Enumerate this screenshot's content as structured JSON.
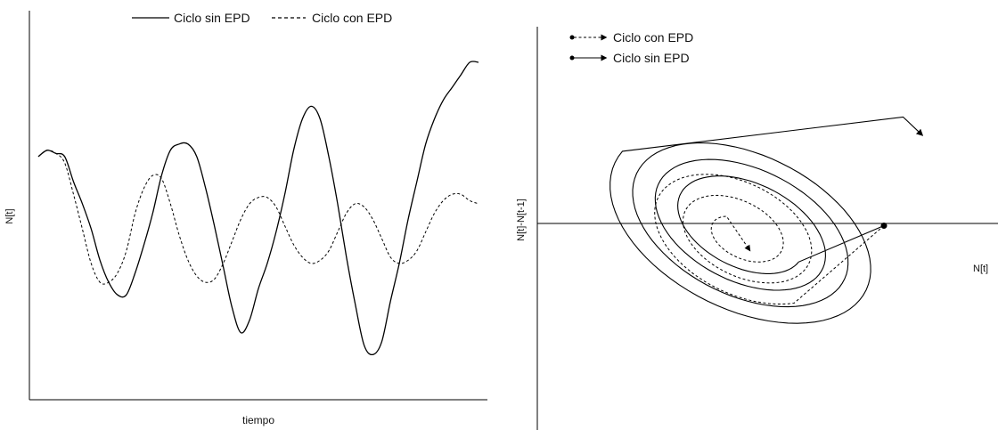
{
  "colors": {
    "line": "#000000",
    "background": "#ffffff"
  },
  "chart_data": [
    {
      "type": "line",
      "title": "",
      "xlabel": "tiempo",
      "ylabel": "N[t]",
      "grid": false,
      "legend_position": "top",
      "legend": [
        {
          "label": "Ciclo sin EPD",
          "style": "solid"
        },
        {
          "label": "Ciclo con EPD",
          "style": "dashed"
        }
      ],
      "xlim": [
        0,
        100
      ],
      "ylim": [
        0,
        100
      ],
      "series": [
        {
          "name": "Ciclo sin EPD",
          "style": "solid",
          "x": [
            0,
            2,
            4,
            6,
            8,
            10,
            12,
            14,
            16,
            18,
            20,
            22,
            24,
            26,
            28,
            30,
            32,
            34,
            36,
            38,
            40,
            42,
            44,
            46,
            48,
            50,
            52,
            54,
            56,
            58,
            60,
            62,
            64,
            66,
            68,
            70,
            72,
            74,
            76,
            78,
            80,
            82,
            84,
            86,
            88,
            90,
            92,
            94,
            96,
            98,
            100
          ],
          "y": [
            70,
            72,
            71,
            70,
            62,
            55,
            47,
            37,
            30,
            26,
            26,
            33,
            42,
            52,
            64,
            72,
            74,
            74,
            70,
            60,
            48,
            35,
            22,
            14,
            18,
            28,
            36,
            46,
            58,
            72,
            82,
            86,
            82,
            70,
            55,
            38,
            23,
            10,
            7,
            11,
            24,
            36,
            50,
            62,
            74,
            82,
            88,
            92,
            96,
            100,
            100
          ]
        },
        {
          "name": "Ciclo con EPD",
          "style": "dashed",
          "x": [
            0,
            2,
            4,
            6,
            8,
            10,
            12,
            14,
            16,
            18,
            20,
            22,
            24,
            26,
            28,
            30,
            32,
            34,
            36,
            38,
            40,
            42,
            44,
            46,
            48,
            50,
            52,
            54,
            56,
            58,
            60,
            62,
            64,
            66,
            68,
            70,
            72,
            74,
            76,
            78,
            80,
            82,
            84,
            86,
            88,
            90,
            92,
            94,
            96,
            98,
            100
          ],
          "y": [
            70,
            72,
            71,
            68,
            58,
            47,
            36,
            30,
            30,
            33,
            40,
            52,
            60,
            64,
            63,
            55,
            45,
            37,
            32,
            30,
            31,
            36,
            43,
            50,
            55,
            57,
            57,
            54,
            48,
            42,
            38,
            36,
            37,
            40,
            46,
            52,
            55,
            54,
            50,
            44,
            38,
            36,
            37,
            40,
            46,
            52,
            56,
            58,
            58,
            56,
            55
          ]
        }
      ]
    },
    {
      "type": "line",
      "subtype": "phase-plot",
      "title": "",
      "xlabel": "N[t]",
      "ylabel": "N[t]-N[t-1]",
      "grid": false,
      "legend_position": "top-left",
      "legend": [
        {
          "label": "Ciclo con EPD",
          "style": "dashed",
          "marker": "dot-arrow"
        },
        {
          "label": "Ciclo sin EPD",
          "style": "solid",
          "marker": "dot-arrow"
        }
      ],
      "xlim": [
        -1,
        1
      ],
      "ylim": [
        -1,
        1
      ],
      "series": [
        {
          "name": "Ciclo sin EPD",
          "style": "solid",
          "shape": "outward-spiral",
          "start": [
            0.8,
            0.1
          ],
          "end": [
            1.0,
            0.65
          ],
          "turns": 3.5
        },
        {
          "name": "Ciclo con EPD",
          "style": "dashed",
          "shape": "inward-spiral",
          "start": [
            0.8,
            0.1
          ],
          "end": [
            0.1,
            -0.05
          ],
          "turns": 2.5
        }
      ]
    }
  ]
}
